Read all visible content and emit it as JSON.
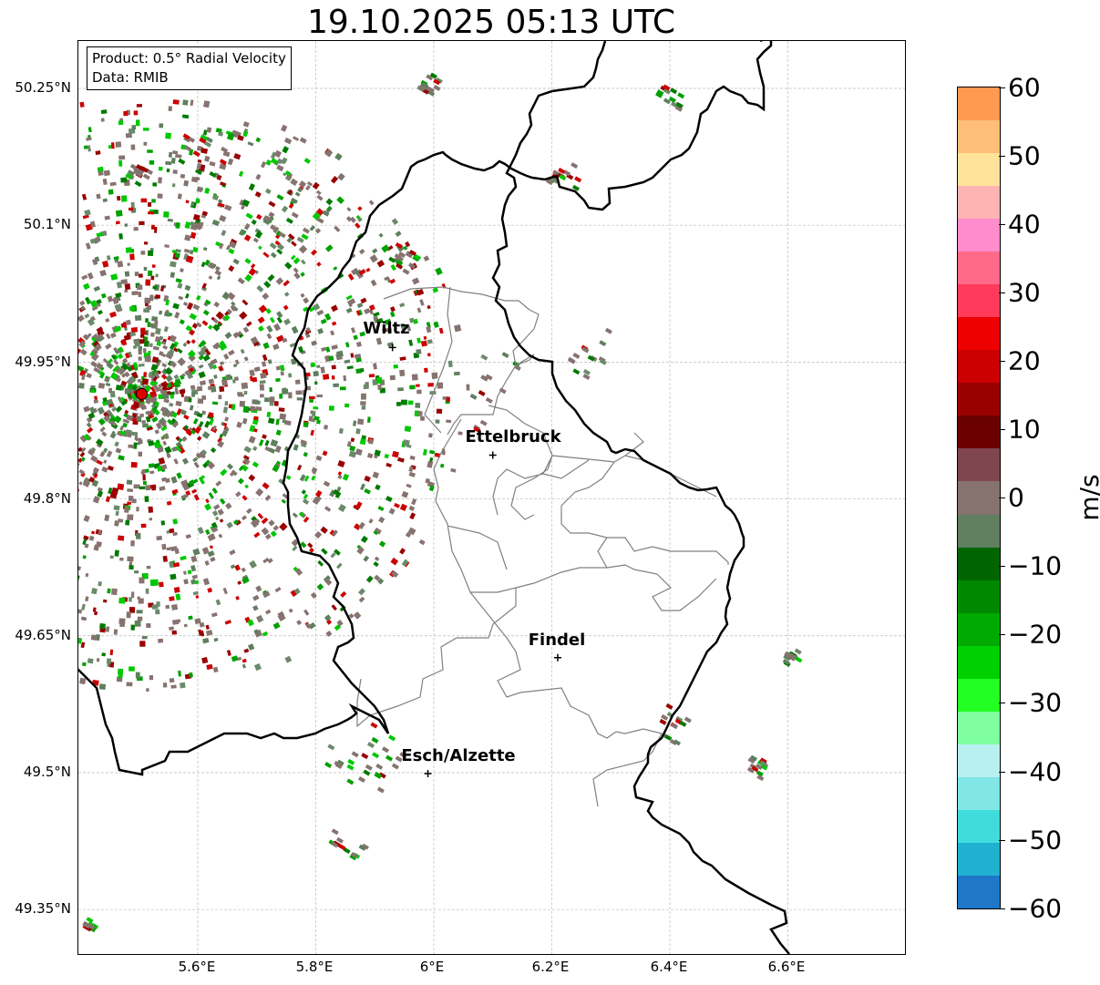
{
  "title": "19.10.2025 05:13 UTC",
  "info": {
    "product": "Product: 0.5° Radial Velocity",
    "source": "Data: RMIB"
  },
  "axes": {
    "y_ticks": [
      "50.25°N",
      "50.1°N",
      "49.95°N",
      "49.8°N",
      "49.65°N",
      "49.5°N",
      "49.35°N"
    ],
    "x_ticks": [
      "5.6°E",
      "5.8°E",
      "6°E",
      "6.2°E",
      "6.4°E",
      "6.6°E"
    ]
  },
  "cities": [
    {
      "name": "Wiltz",
      "lon": 5.93,
      "lat": 49.966
    },
    {
      "name": "Ettelbruck",
      "lon": 6.1,
      "lat": 49.848
    },
    {
      "name": "Findel",
      "lon": 6.21,
      "lat": 49.626
    },
    {
      "name": "Esch/Alzette",
      "lon": 5.99,
      "lat": 49.499
    }
  ],
  "radar_site": {
    "lon": 5.505,
    "lat": 49.915,
    "color": "#e00000"
  },
  "colorbar": {
    "unit": "m/s",
    "ticks": [
      "60",
      "50",
      "40",
      "30",
      "20",
      "10",
      "0",
      "−10",
      "−20",
      "−30",
      "−40",
      "−50",
      "−60"
    ],
    "range": [
      -60,
      60
    ]
  },
  "colors": {
    "border": "#000000",
    "cantons": "#808080",
    "grid": "#bbbbbb",
    "zero_velocity": "#86736f",
    "receding": "#cc0000",
    "approaching": "#00aa00"
  }
}
